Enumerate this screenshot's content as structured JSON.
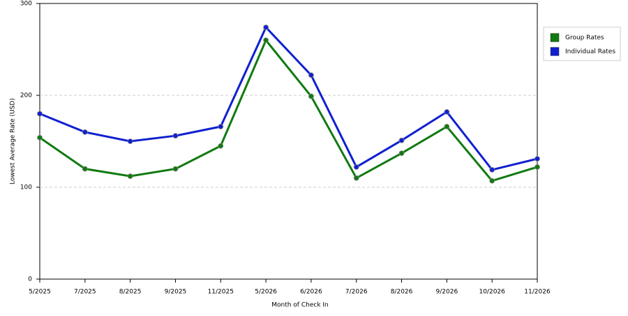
{
  "chart_data": {
    "type": "line",
    "x_label": "Month of Check In",
    "y_label": "Lowest Average Rate (USD)",
    "categories": [
      "5/2025",
      "7/2025",
      "8/2025",
      "9/2025",
      "11/2025",
      "5/2026",
      "6/2026",
      "7/2026",
      "8/2026",
      "9/2026",
      "10/2026",
      "11/2026"
    ],
    "series": [
      {
        "name": "Group Rates",
        "color": "#107a10",
        "values": [
          154,
          120,
          112,
          120,
          145,
          260,
          199,
          110,
          137,
          166,
          107,
          122
        ]
      },
      {
        "name": "Individual Rates",
        "color": "#1020d0",
        "values": [
          180,
          160,
          150,
          156,
          166,
          274,
          222,
          122,
          151,
          182,
          119,
          131
        ]
      }
    ],
    "ylim": [
      0,
      300
    ],
    "yticks": [
      0,
      100,
      200,
      300
    ],
    "grid": true,
    "legend": "right"
  }
}
